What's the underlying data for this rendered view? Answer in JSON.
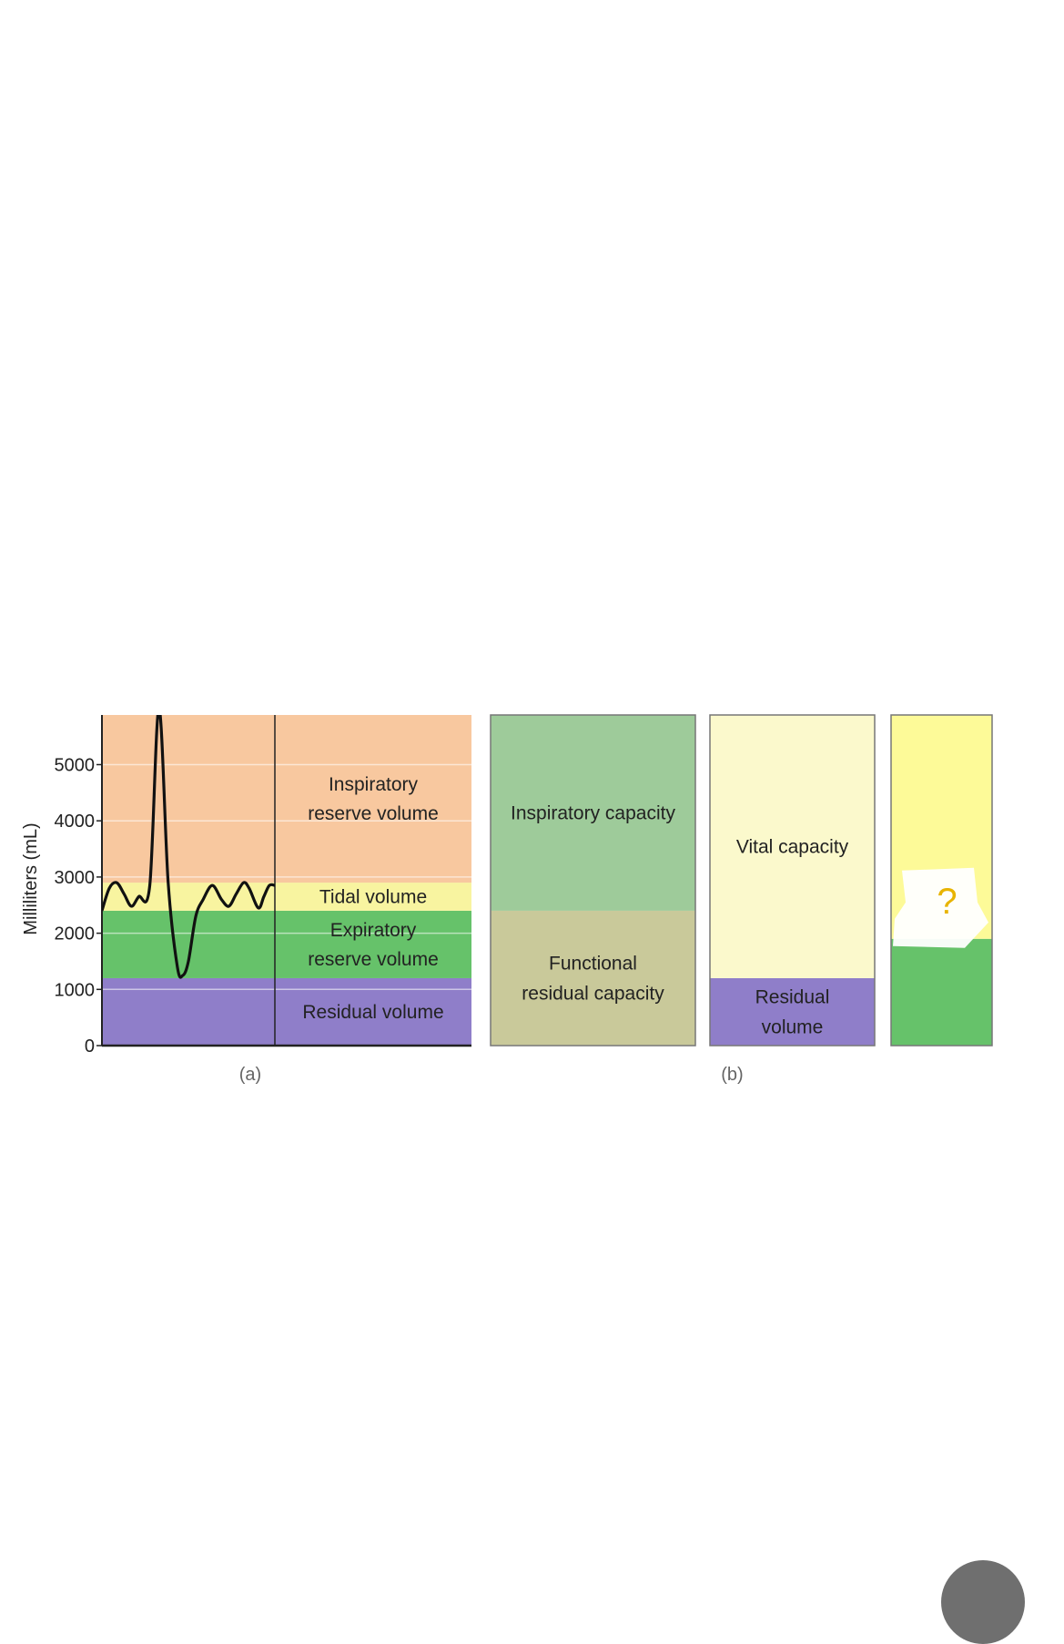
{
  "chart_data": {
    "type": "stacked-bar",
    "ylabel": "Milliliters (mL)",
    "ylim": [
      0,
      6000
    ],
    "y_ticks": [
      0,
      1000,
      2000,
      3000,
      4000,
      5000
    ],
    "y_tick_labels": [
      "0",
      "1000",
      "2000",
      "3000",
      "4000",
      "5000"
    ],
    "panel_labels": [
      "(a)",
      "(b)"
    ],
    "volumes": [
      {
        "name": "Residual volume",
        "label_lines": [
          "Residual volume"
        ],
        "from": 0,
        "to": 1200,
        "color": "#8f7ec9"
      },
      {
        "name": "Expiratory reserve volume",
        "label_lines": [
          "Expiratory",
          "reserve volume"
        ],
        "from": 1200,
        "to": 2400,
        "color": "#66c26a"
      },
      {
        "name": "Tidal volume",
        "label_lines": [
          "Tidal volume"
        ],
        "from": 2400,
        "to": 2900,
        "color": "#f8f4a0"
      },
      {
        "name": "Inspiratory reserve volume",
        "label_lines": [
          "Inspiratory",
          "reserve volume"
        ],
        "from": 2900,
        "to": 6000,
        "color": "#f8c89f"
      }
    ],
    "capacity_columns": [
      {
        "segments": [
          {
            "name": "Functional residual capacity",
            "label_lines": [
              "Functional",
              "residual capacity"
            ],
            "from": 0,
            "to": 2400,
            "color": "#c9c99a"
          },
          {
            "name": "Inspiratory capacity",
            "label_lines": [
              "Inspiratory capacity"
            ],
            "from": 2400,
            "to": 6000,
            "color": "#9ecb9a"
          }
        ]
      },
      {
        "segments": [
          {
            "name": "Residual volume",
            "label_lines": [
              "Residual",
              "volume"
            ],
            "from": 0,
            "to": 1200,
            "color": "#8f7ec9"
          },
          {
            "name": "Vital capacity",
            "label_lines": [
              "Vital capacity"
            ],
            "from": 1200,
            "to": 6000,
            "color": "#fbf9cc"
          }
        ]
      },
      {
        "segments": [
          {
            "name": "",
            "label_lines": [],
            "from": 0,
            "to": 1900,
            "color": "#66c26a"
          },
          {
            "name": "",
            "label_lines": [],
            "from": 1900,
            "to": 6000,
            "color": "#fdfa98"
          }
        ],
        "annotation": "?"
      }
    ],
    "spirogram_trace": {
      "t": [
        0,
        0.02,
        0.04,
        0.06,
        0.08,
        0.1,
        0.13,
        0.155,
        0.18,
        0.205,
        0.22,
        0.235,
        0.255,
        0.275,
        0.3,
        0.325,
        0.345,
        0.365,
        0.385,
        0.4,
        0.425,
        0.44,
        0.455,
        0.47
      ],
      "ml": [
        2400,
        2800,
        2900,
        2700,
        2480,
        2650,
        2850,
        6000,
        2900,
        1400,
        1250,
        1500,
        2300,
        2600,
        2850,
        2600,
        2480,
        2700,
        2900,
        2800,
        2450,
        2650,
        2850,
        2850
      ]
    }
  }
}
